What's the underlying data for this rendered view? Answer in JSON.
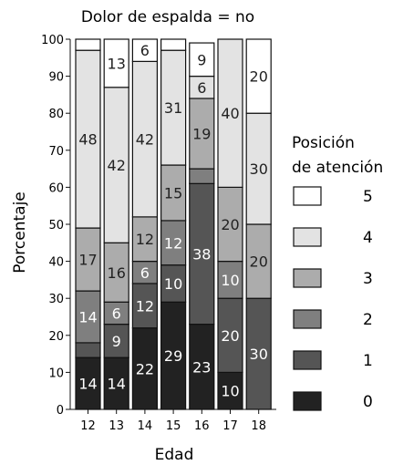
{
  "chart_data": {
    "type": "bar",
    "stacked": true,
    "title": "Dolor de espalda = no",
    "xlabel": "Edad",
    "ylabel": "Porcentaje",
    "ylim": [
      0,
      100
    ],
    "yticks": [
      0,
      10,
      20,
      30,
      40,
      50,
      60,
      70,
      80,
      90,
      100
    ],
    "categories": [
      "12",
      "13",
      "14",
      "15",
      "16",
      "17",
      "18"
    ],
    "legend": {
      "title": [
        "Posición",
        "de atención"
      ],
      "placement": "right"
    },
    "series": [
      {
        "name": "0",
        "color": "#222222",
        "values": [
          14,
          14,
          22,
          29,
          23,
          10,
          0
        ]
      },
      {
        "name": "1",
        "color": "#555555",
        "values": [
          4,
          9,
          12,
          10,
          38,
          20,
          30
        ]
      },
      {
        "name": "2",
        "color": "#7f7f7f",
        "values": [
          14,
          6,
          6,
          12,
          4,
          10,
          0
        ]
      },
      {
        "name": "3",
        "color": "#acacac",
        "values": [
          17,
          16,
          12,
          15,
          19,
          20,
          20
        ]
      },
      {
        "name": "4",
        "color": "#e3e3e3",
        "values": [
          48,
          42,
          42,
          31,
          6,
          40,
          30
        ]
      },
      {
        "name": "5",
        "color": "#ffffff",
        "values": [
          3,
          13,
          6,
          3,
          9,
          0,
          20
        ]
      }
    ],
    "data_labels": [
      [
        "14",
        "",
        "14",
        "17",
        "48",
        ""
      ],
      [
        "14",
        "9",
        "6",
        "16",
        "42",
        "13"
      ],
      [
        "22",
        "12",
        "6",
        "12",
        "42",
        "6"
      ],
      [
        "29",
        "10",
        "12",
        "15",
        "31",
        ""
      ],
      [
        "23",
        "38",
        "",
        "19",
        "6",
        "9"
      ],
      [
        "10",
        "20",
        "10",
        "20",
        "40",
        ""
      ],
      [
        "",
        "30",
        "",
        "20",
        "30",
        "20"
      ]
    ]
  }
}
